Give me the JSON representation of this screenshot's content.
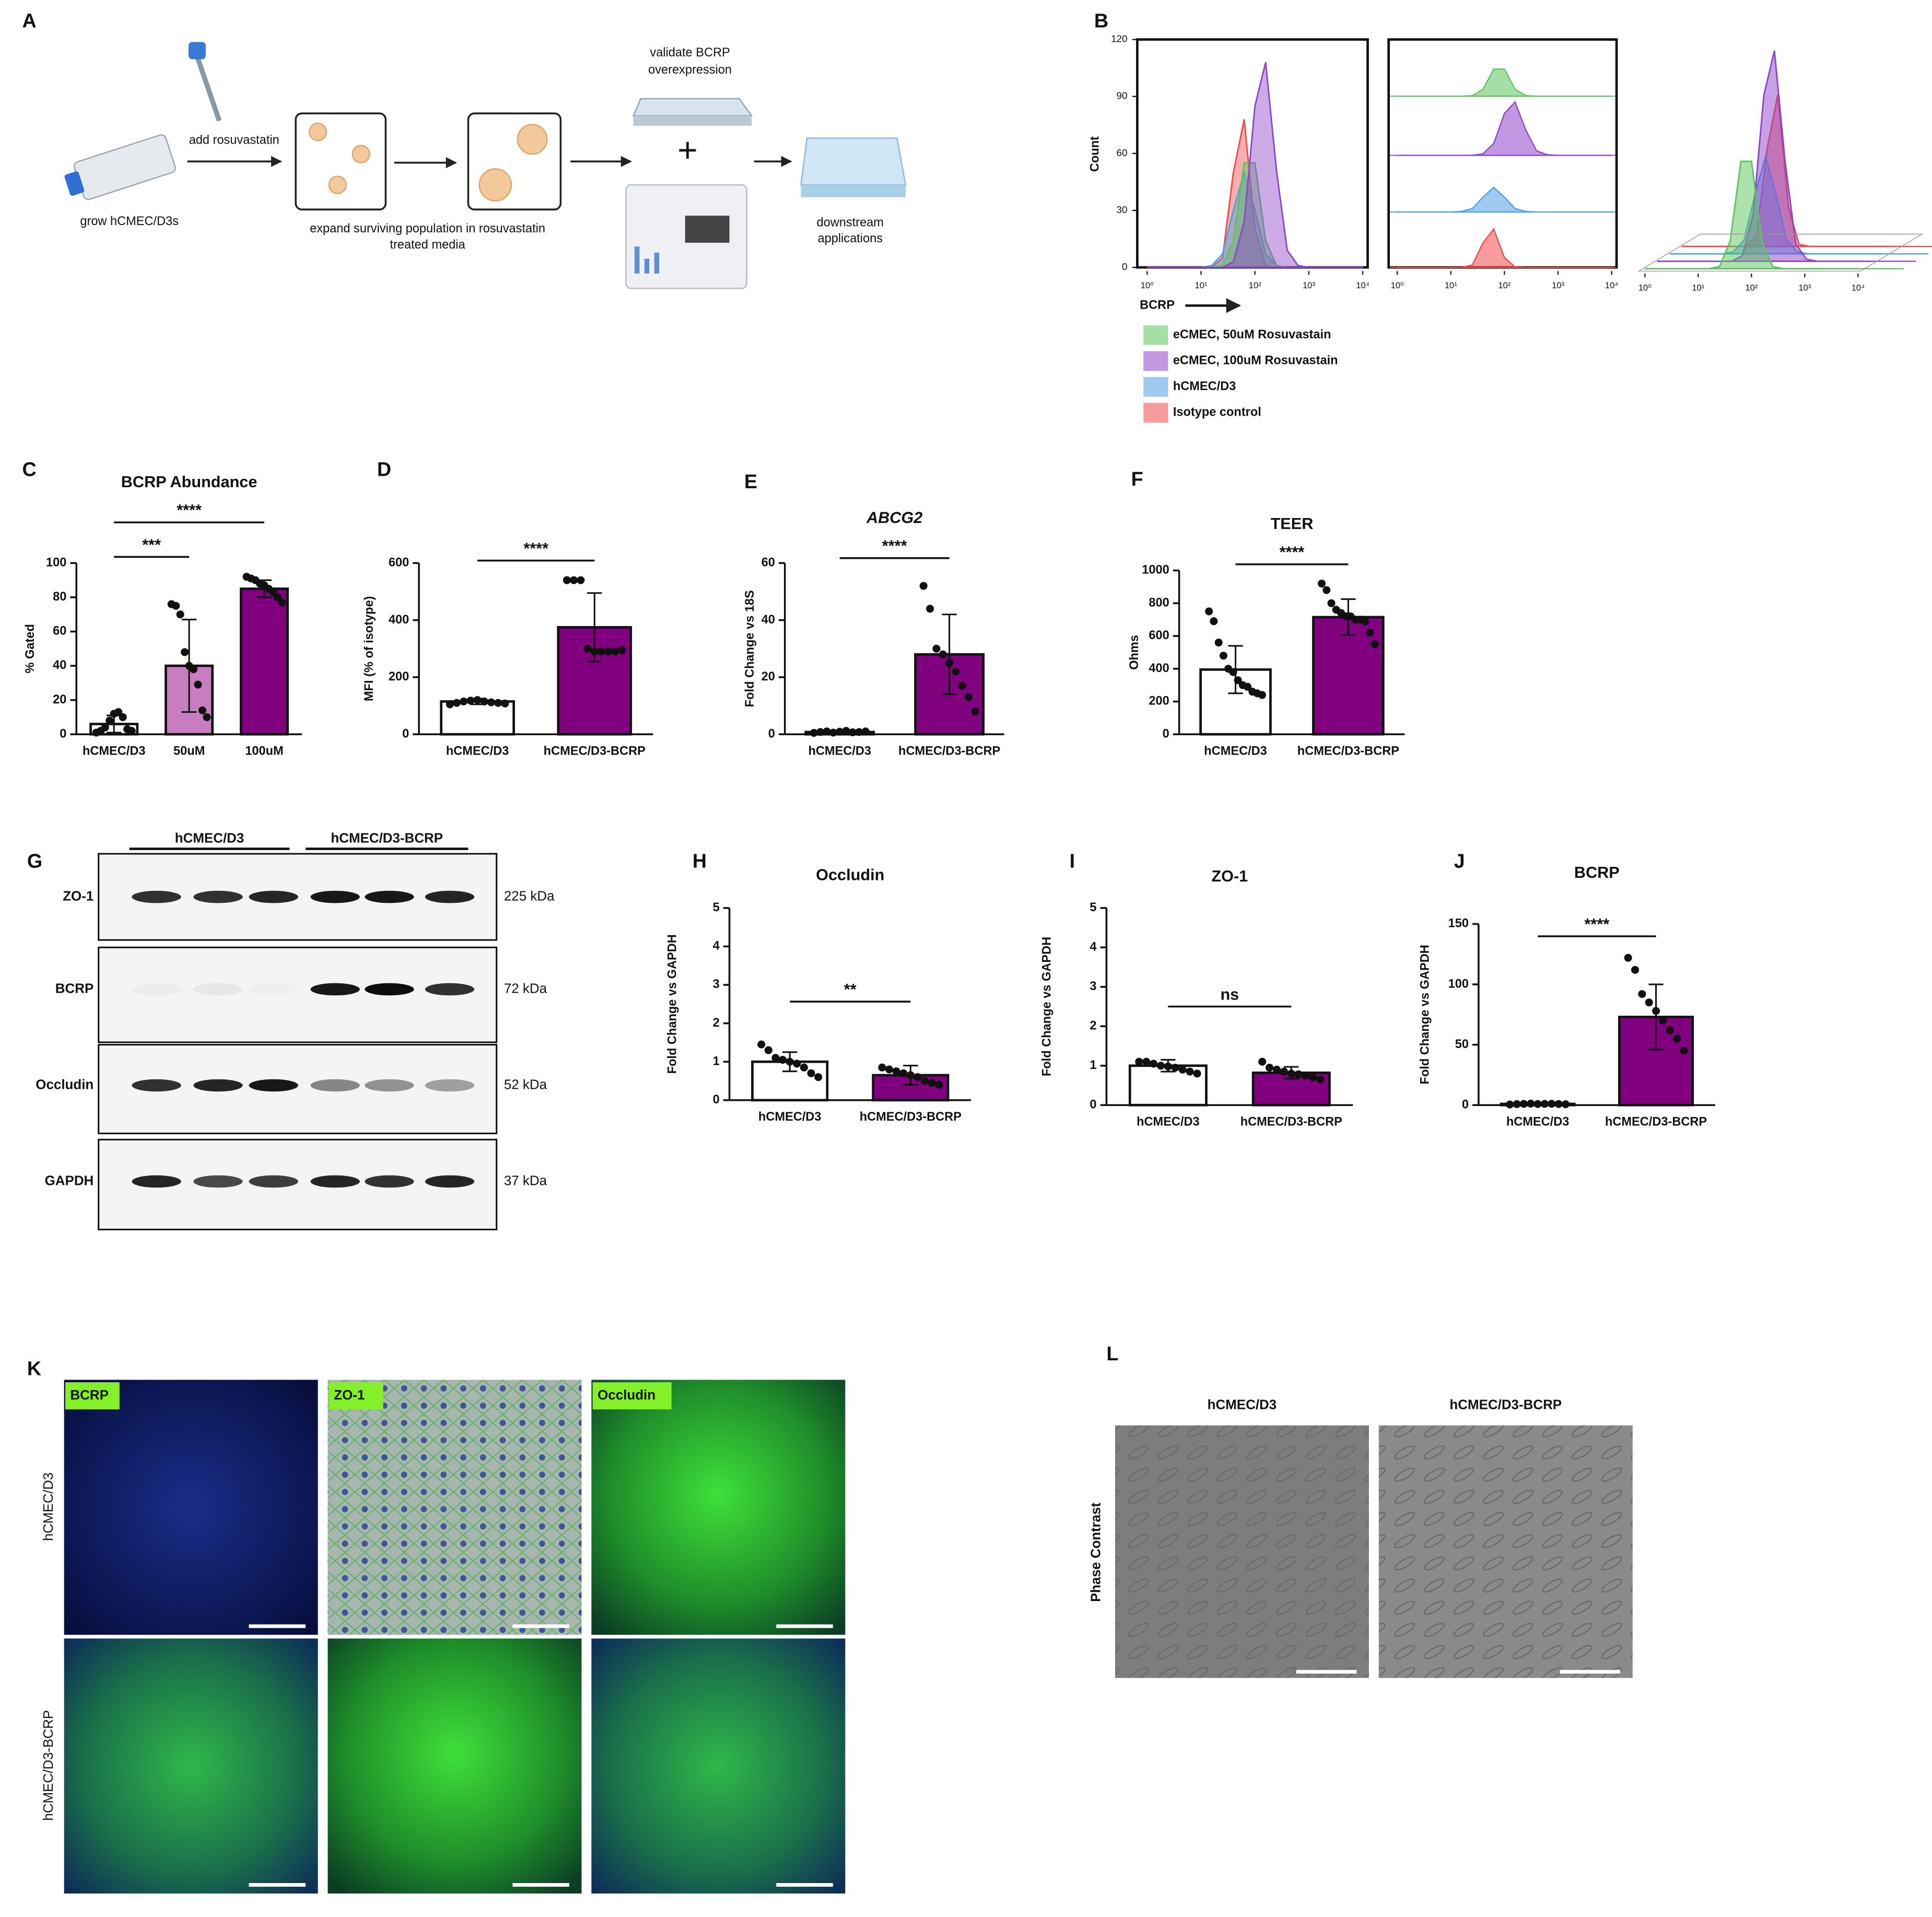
{
  "panel_labels": [
    "A",
    "B",
    "C",
    "D",
    "E",
    "F",
    "G",
    "H",
    "I",
    "J",
    "K",
    "L"
  ],
  "schematic": {
    "grow": "grow hCMEC/D3s",
    "add": "add rosuvastatin",
    "expand": [
      "expand surviving population in rosuvastatin",
      "treated media"
    ],
    "validate": [
      "validate BCRP",
      "overexpression"
    ],
    "plus": "+",
    "downstream": [
      "downstream",
      "applications"
    ]
  },
  "chart_data": [
    {
      "type": "area",
      "xlabel": "BCRP",
      "ylabel": "Count",
      "log_x": true,
      "x": [
        1,
        1.58,
        2.51,
        3.98,
        6.31,
        10,
        15.8,
        25.1,
        39.8,
        63.1,
        100,
        158,
        251,
        398,
        631,
        1000,
        1585,
        2512,
        3981,
        6310,
        10000
      ],
      "xlim": [
        1,
        10000
      ],
      "xticks": [
        {
          "value": 1,
          "label": "10⁰"
        },
        {
          "value": 10,
          "label": "10¹"
        },
        {
          "value": 100,
          "label": "10²"
        },
        {
          "value": 1000,
          "label": "10³"
        },
        {
          "value": 10000,
          "label": "10⁴"
        }
      ],
      "ylim": [
        0,
        120
      ],
      "yticks": [
        0,
        30,
        60,
        90,
        120
      ],
      "series": [
        {
          "name": "eCMEC, 50uM Rosuvastain",
          "color": "#5cc45c",
          "values": [
            0,
            0,
            0,
            0,
            0,
            0,
            0,
            1,
            14,
            55,
            55,
            14,
            1,
            0,
            0,
            0,
            0,
            0,
            0,
            0,
            0
          ]
        },
        {
          "name": "eCMEC, 100uM Rosuvastain",
          "color": "#8e44c9",
          "values": [
            0,
            0,
            0,
            0,
            0,
            0,
            0,
            0,
            3,
            24,
            85,
            108,
            51,
            9,
            1,
            0,
            0,
            0,
            0,
            0,
            0
          ]
        },
        {
          "name": "hCMEC/D3",
          "color": "#4f9fe3",
          "values": [
            0,
            0,
            0,
            0,
            0,
            0,
            1,
            7,
            30,
            50,
            30,
            7,
            1,
            0,
            0,
            0,
            0,
            0,
            0,
            0,
            0
          ]
        },
        {
          "name": "Isotype control",
          "color": "#ee4b4b",
          "values": [
            0,
            0,
            0,
            0,
            0,
            0,
            0,
            5,
            50,
            78,
            20,
            1,
            0,
            0,
            0,
            0,
            0,
            0,
            0,
            0,
            0
          ]
        }
      ]
    },
    {
      "type": "bar",
      "title": "BCRP Abundance",
      "ylabel": "% Gated",
      "categories": [
        "hCMEC/D3",
        "50uM",
        "100uM"
      ],
      "values": [
        6,
        40,
        85
      ],
      "errors": [
        5,
        27,
        5
      ],
      "colors": [
        "#ffffff",
        "#c77dbf",
        "#800080"
      ],
      "points": [
        [
          1,
          2,
          4,
          8,
          12,
          13,
          10,
          3,
          2
        ],
        [
          76,
          75,
          70,
          48,
          40,
          38,
          29,
          14,
          10
        ],
        [
          92,
          91,
          90,
          88,
          87,
          85,
          83,
          80,
          77
        ]
      ],
      "ylim": [
        0,
        100
      ],
      "yticks": [
        0,
        20,
        40,
        60,
        80,
        100
      ],
      "significance": [
        {
          "between": [
            "hCMEC/D3",
            "50uM"
          ],
          "label": "***"
        },
        {
          "between": [
            "hCMEC/D3",
            "100uM"
          ],
          "label": "****"
        }
      ]
    },
    {
      "type": "bar",
      "ylabel": "MFI (% of isotype)",
      "categories": [
        "hCMEC/D3",
        "hCMEC/D3-BCRP"
      ],
      "values": [
        115,
        375
      ],
      "errors": [
        10,
        120
      ],
      "colors": [
        "#ffffff",
        "#800080"
      ],
      "points": [
        [
          105,
          110,
          115,
          118,
          120,
          115,
          112,
          110,
          108
        ],
        [
          540,
          540,
          540,
          300,
          290,
          290,
          290,
          290,
          295
        ]
      ],
      "ylim": [
        0,
        600
      ],
      "yticks": [
        0,
        200,
        400,
        600
      ],
      "significance": [
        {
          "between": [
            "hCMEC/D3",
            "hCMEC/D3-BCRP"
          ],
          "label": "****"
        }
      ]
    },
    {
      "type": "bar",
      "title": "ABCG2",
      "title_italic": true,
      "ylabel": "Fold Change vs 18S",
      "categories": [
        "hCMEC/D3",
        "hCMEC/D3-BCRP"
      ],
      "values": [
        0.8,
        28
      ],
      "errors": [
        0.5,
        14
      ],
      "colors": [
        "#ffffff",
        "#800080"
      ],
      "points": [
        [
          0.5,
          0.8,
          1,
          0.6,
          0.9,
          1.2,
          0.7,
          0.8,
          1
        ],
        [
          52,
          44,
          30,
          28,
          25,
          22,
          17,
          13,
          8
        ]
      ],
      "ylim": [
        0,
        60
      ],
      "yticks": [
        0,
        20,
        40,
        60
      ],
      "significance": [
        {
          "between": [
            "hCMEC/D3",
            "hCMEC/D3-BCRP"
          ],
          "label": "****"
        }
      ]
    },
    {
      "type": "bar",
      "title": "TEER",
      "ylabel": "Ohms",
      "categories": [
        "hCMEC/D3",
        "hCMEC/D3-BCRP"
      ],
      "values": [
        395,
        715
      ],
      "errors": [
        145,
        110
      ],
      "colors": [
        "#ffffff",
        "#800080"
      ],
      "points": [
        [
          750,
          690,
          560,
          480,
          400,
          380,
          330,
          300,
          290,
          260,
          250,
          240
        ],
        [
          920,
          880,
          800,
          760,
          740,
          720,
          720,
          700,
          700,
          690,
          620,
          550
        ]
      ],
      "ylim": [
        0,
        1000
      ],
      "yticks": [
        0,
        200,
        400,
        600,
        800,
        1000
      ],
      "significance": [
        {
          "between": [
            "hCMEC/D3",
            "hCMEC/D3-BCRP"
          ],
          "label": "****"
        }
      ]
    },
    {
      "type": "bar",
      "title": "Occludin",
      "ylabel": "Fold Change vs GAPDH",
      "categories": [
        "hCMEC/D3",
        "hCMEC/D3-BCRP"
      ],
      "values": [
        1.0,
        0.65
      ],
      "errors": [
        0.25,
        0.25
      ],
      "colors": [
        "#ffffff",
        "#800080"
      ],
      "points": [
        [
          1.45,
          1.3,
          1.1,
          1.05,
          1.0,
          0.95,
          0.85,
          0.7,
          0.6
        ],
        [
          0.85,
          0.8,
          0.75,
          0.7,
          0.65,
          0.6,
          0.5,
          0.45,
          0.4
        ]
      ],
      "ylim": [
        0,
        5
      ],
      "yticks": [
        0,
        1,
        2,
        3,
        4,
        5
      ],
      "significance": [
        {
          "between": [
            "hCMEC/D3",
            "hCMEC/D3-BCRP"
          ],
          "label": "**"
        }
      ]
    },
    {
      "type": "bar",
      "title": "ZO-1",
      "ylabel": "Fold Change vs GAPDH",
      "categories": [
        "hCMEC/D3",
        "hCMEC/D3-BCRP"
      ],
      "values": [
        1.0,
        0.82
      ],
      "errors": [
        0.15,
        0.15
      ],
      "colors": [
        "#ffffff",
        "#800080"
      ],
      "points": [
        [
          1.1,
          1.1,
          1.05,
          1.0,
          0.98,
          0.95,
          0.9,
          0.85,
          0.8
        ],
        [
          1.1,
          0.95,
          0.9,
          0.85,
          0.8,
          0.78,
          0.75,
          0.7,
          0.65
        ]
      ],
      "ylim": [
        0,
        5
      ],
      "yticks": [
        0,
        1,
        2,
        3,
        4,
        5
      ],
      "significance": [
        {
          "between": [
            "hCMEC/D3",
            "hCMEC/D3-BCRP"
          ],
          "label": "ns"
        }
      ]
    },
    {
      "type": "bar",
      "title": "BCRP",
      "ylabel": "Fold Change vs GAPDH",
      "categories": [
        "hCMEC/D3",
        "hCMEC/D3-BCRP"
      ],
      "values": [
        1,
        73
      ],
      "errors": [
        0.3,
        27
      ],
      "colors": [
        "#ffffff",
        "#800080"
      ],
      "points": [
        [
          0.5,
          0.8,
          1,
          1.2,
          0.9,
          1,
          1.1,
          0.9,
          0.7
        ],
        [
          122,
          112,
          92,
          85,
          78,
          70,
          62,
          55,
          45
        ]
      ],
      "ylim": [
        0,
        150
      ],
      "yticks": [
        0,
        50,
        100,
        150
      ],
      "significance": [
        {
          "between": [
            "hCMEC/D3",
            "hCMEC/D3-BCRP"
          ],
          "label": "****"
        }
      ]
    }
  ],
  "western_blot": {
    "groups": [
      "hCMEC/D3",
      "hCMEC/D3-BCRP"
    ],
    "rows": [
      {
        "label": "ZO-1",
        "size": "225 kDa"
      },
      {
        "label": "BCRP",
        "size": "72 kDa"
      },
      {
        "label": "Occludin",
        "size": "52 kDa"
      },
      {
        "label": "GAPDH",
        "size": "37 kDa"
      }
    ]
  },
  "immunofluorescence": {
    "stains": [
      "BCRP",
      "ZO-1",
      "Occludin"
    ],
    "cell_lines": [
      "hCMEC/D3",
      "hCMEC/D3-BCRP"
    ]
  },
  "phase_contrast": {
    "label": "Phase Contrast",
    "cell_lines": [
      "hCMEC/D3",
      "hCMEC/D3-BCRP"
    ]
  }
}
